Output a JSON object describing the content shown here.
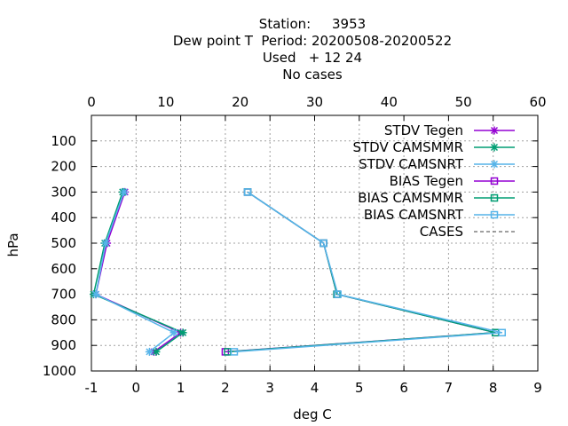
{
  "chart_data": {
    "type": "line",
    "title_lines": [
      "Station:     3953",
      "Dew point T  Period: 20200508-20200522",
      "Used   + 12 24",
      "No cases"
    ],
    "xlabel": "deg C",
    "ylabel": "hPa",
    "x_bottom": {
      "lim": [
        -1,
        9
      ],
      "ticks": [
        "-1",
        "0",
        "1",
        "2",
        "3",
        "4",
        "5",
        "6",
        "7",
        "8",
        "9"
      ]
    },
    "x_top": {
      "lim": [
        0,
        60
      ],
      "ticks": [
        "0",
        "10",
        "20",
        "30",
        "40",
        "50",
        "60"
      ]
    },
    "y": {
      "lim": [
        1000,
        0
      ],
      "ticks": [
        "100",
        "200",
        "300",
        "400",
        "500",
        "600",
        "700",
        "800",
        "900",
        "1000"
      ]
    },
    "grid": true,
    "legend_position": "top-right",
    "series": [
      {
        "name": "STDV Tegen",
        "marker": "x-star",
        "color": "#9400d3",
        "dash": false,
        "y": [
          300,
          500,
          700,
          850,
          925
        ],
        "x": [
          -0.25,
          -0.65,
          -0.9,
          1.0,
          0.4
        ]
      },
      {
        "name": "STDV CAMSMMR",
        "marker": "x-star",
        "color": "#009e73",
        "dash": false,
        "y": [
          300,
          500,
          700,
          850,
          925
        ],
        "x": [
          -0.3,
          -0.7,
          -0.95,
          1.05,
          0.45
        ]
      },
      {
        "name": "STDV CAMSNRT",
        "marker": "x-star",
        "color": "#56b4e9",
        "dash": false,
        "y": [
          300,
          500,
          700,
          850,
          925
        ],
        "x": [
          -0.27,
          -0.68,
          -0.9,
          0.85,
          0.3
        ]
      },
      {
        "name": "BIAS Tegen",
        "marker": "square",
        "color": "#9400d3",
        "dash": false,
        "y": [
          300,
          500,
          700,
          850,
          925
        ],
        "x": [
          2.5,
          4.2,
          4.5,
          8.05,
          2.0
        ]
      },
      {
        "name": "BIAS CAMSMMR",
        "marker": "square",
        "color": "#009e73",
        "dash": false,
        "y": [
          300,
          500,
          700,
          850,
          925
        ],
        "x": [
          2.5,
          4.2,
          4.5,
          8.05,
          2.05
        ]
      },
      {
        "name": "BIAS CAMSNRT",
        "marker": "square",
        "color": "#56b4e9",
        "dash": false,
        "y": [
          300,
          500,
          700,
          850,
          925
        ],
        "x": [
          2.5,
          4.2,
          4.52,
          8.2,
          2.2
        ]
      },
      {
        "name": "CASES",
        "marker": "none",
        "color": "#808080",
        "dash": true,
        "y": [],
        "x": []
      }
    ]
  }
}
